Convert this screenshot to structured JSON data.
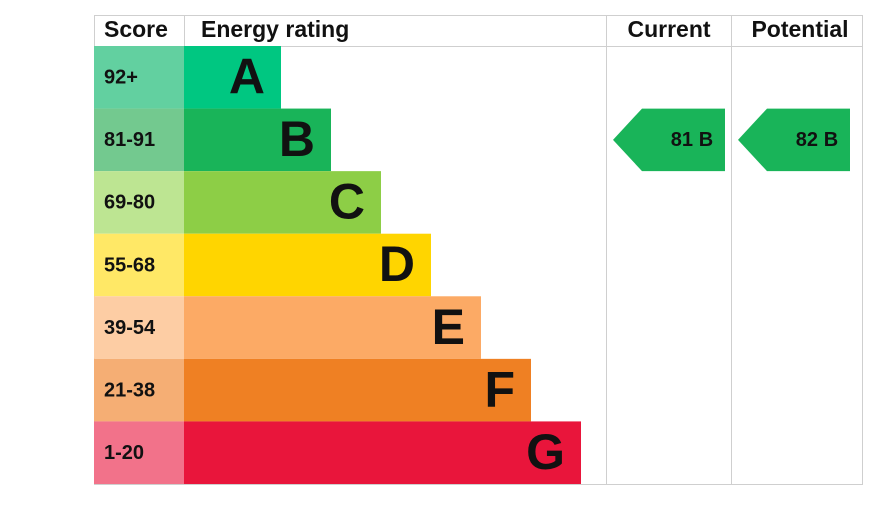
{
  "header": {
    "score": "Score",
    "energy_rating": "Energy rating",
    "current": "Current",
    "potential": "Potential"
  },
  "bands": [
    {
      "score": "92+",
      "letter": "A",
      "color": "#00c781",
      "score_color": "#62d0a0"
    },
    {
      "score": "81-91",
      "letter": "B",
      "color": "#19b459",
      "score_color": "#73c98f"
    },
    {
      "score": "69-80",
      "letter": "C",
      "color": "#8dce46",
      "score_color": "#bde592"
    },
    {
      "score": "55-68",
      "letter": "D",
      "color": "#ffd500",
      "score_color": "#ffe866"
    },
    {
      "score": "39-54",
      "letter": "E",
      "color": "#fcaa65",
      "score_color": "#fdcda4"
    },
    {
      "score": "21-38",
      "letter": "F",
      "color": "#ef8023",
      "score_color": "#f5ae74"
    },
    {
      "score": "1-20",
      "letter": "G",
      "color": "#e9153b",
      "score_color": "#f2728a"
    }
  ],
  "current": {
    "score": 81,
    "letter": "B"
  },
  "potential": {
    "score": 82,
    "letter": "B"
  }
}
